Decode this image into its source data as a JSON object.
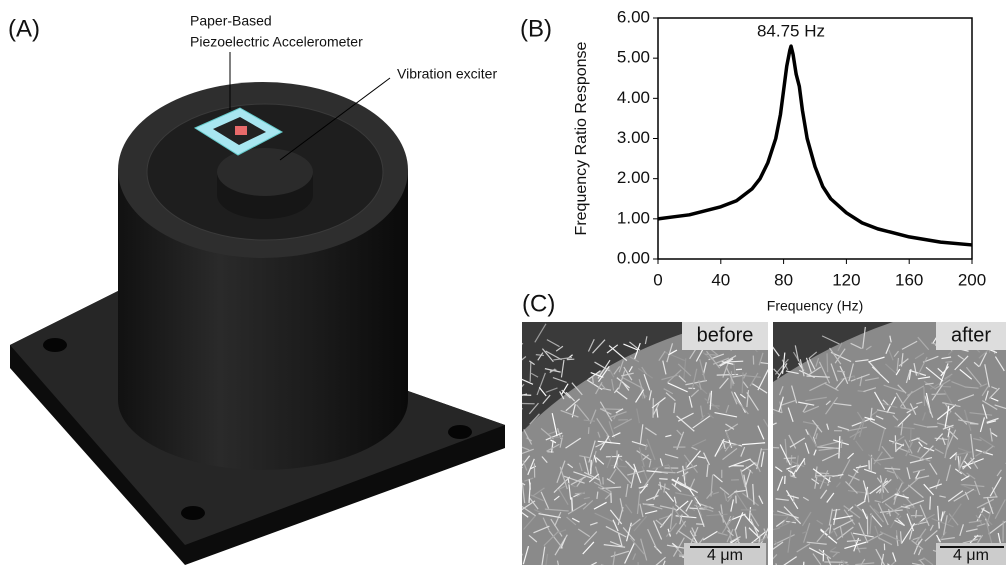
{
  "figure": {
    "panel_labels": [
      "(A)",
      "(B)",
      "(C)"
    ],
    "annotations": {
      "sensor_line1": "Paper-Based",
      "sensor_line2": "Piezoelectric Accelerometer",
      "exciter": "Vibration exciter"
    },
    "sem": {
      "before": "before",
      "after": "after",
      "scale_before": "4 μm",
      "scale_after": "4 μm"
    }
  },
  "chart_data": {
    "type": "line",
    "annotation": "84.75 Hz",
    "x_label": "Frequency (Hz)",
    "y_label": "Frequency Ratio Response",
    "x": [
      0,
      10,
      20,
      30,
      40,
      50,
      60,
      65,
      70,
      75,
      78,
      80,
      82,
      84,
      84.75,
      86,
      88,
      90,
      92,
      95,
      100,
      105,
      110,
      120,
      130,
      140,
      160,
      180,
      200
    ],
    "series": [
      {
        "color": "#000000",
        "values": [
          1.0,
          1.05,
          1.1,
          1.2,
          1.3,
          1.45,
          1.75,
          2.0,
          2.4,
          3.0,
          3.6,
          4.2,
          4.8,
          5.2,
          5.3,
          5.1,
          4.6,
          4.3,
          3.7,
          3.0,
          2.3,
          1.8,
          1.5,
          1.15,
          0.9,
          0.75,
          0.55,
          0.42,
          0.35
        ]
      }
    ],
    "xlim": [
      0,
      200
    ],
    "xticks": [
      0,
      40,
      80,
      120,
      160,
      200
    ],
    "ylim": [
      0,
      6
    ],
    "yticks": [
      {
        "value": 0,
        "label": "0.00"
      },
      {
        "value": 1,
        "label": "1.00"
      },
      {
        "value": 2,
        "label": "2.00"
      },
      {
        "value": 3,
        "label": "3.00"
      },
      {
        "value": 4,
        "label": "4.00"
      },
      {
        "value": 5,
        "label": "5.00"
      },
      {
        "value": 6,
        "label": "6.00"
      }
    ]
  }
}
